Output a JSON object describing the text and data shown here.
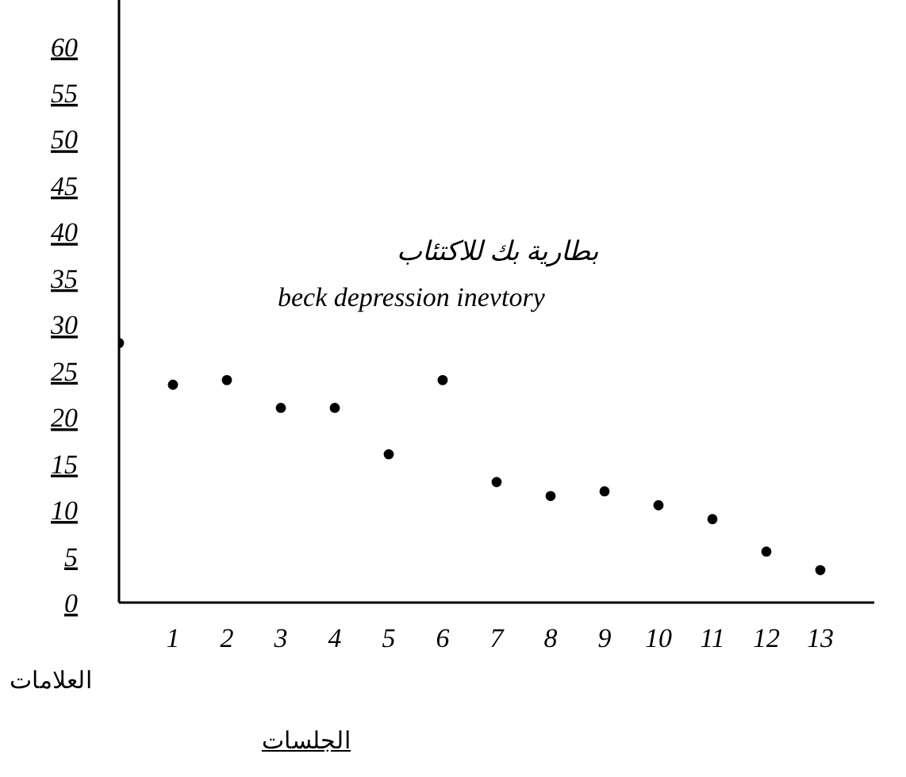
{
  "chart_data": {
    "type": "scatter",
    "title": "بطارية بك للاكتئاب",
    "subtitle": "beck depression inevtory",
    "xlabel": "الجلسات",
    "ylabel": "العلامات",
    "x": [
      0,
      1,
      2,
      3,
      4,
      5,
      6,
      7,
      8,
      9,
      10,
      11,
      12,
      13
    ],
    "series": [
      {
        "color": "#000000",
        "values": [
          28,
          23.5,
          24,
          21,
          21,
          16,
          24,
          13,
          11.5,
          12,
          10.5,
          9,
          5.5,
          3.5
        ]
      }
    ],
    "xlim": [
      0,
      14
    ],
    "xticks": [
      1,
      2,
      3,
      4,
      5,
      6,
      7,
      8,
      9,
      10,
      11,
      12,
      13
    ],
    "ylim": [
      0,
      65
    ],
    "yticks": [
      0,
      5,
      10,
      15,
      20,
      25,
      30,
      35,
      40,
      45,
      50,
      55,
      60
    ],
    "marker": "circle",
    "grid": false
  }
}
